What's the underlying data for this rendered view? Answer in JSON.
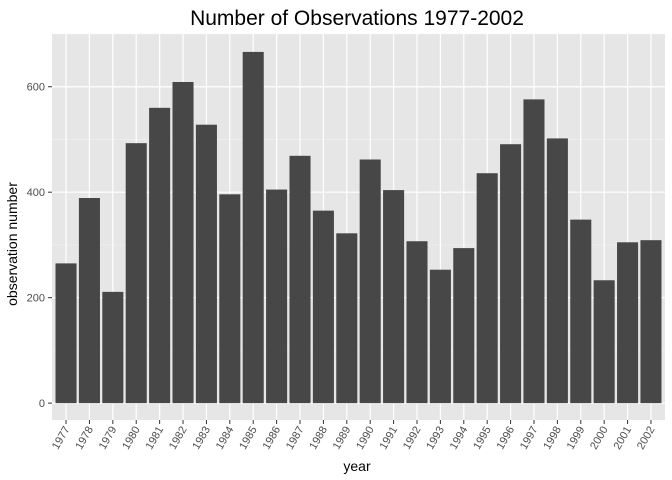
{
  "chart_data": {
    "type": "bar",
    "title": "Number of Observations 1977-2002",
    "xlabel": "year",
    "ylabel": "observation number",
    "categories": [
      "1977",
      "1978",
      "1979",
      "1980",
      "1981",
      "1982",
      "1983",
      "1984",
      "1985",
      "1986",
      "1987",
      "1988",
      "1989",
      "1990",
      "1991",
      "1992",
      "1993",
      "1994",
      "1995",
      "1996",
      "1997",
      "1998",
      "1999",
      "2000",
      "2001",
      "2002"
    ],
    "values": [
      265,
      389,
      211,
      493,
      560,
      609,
      528,
      396,
      666,
      405,
      469,
      365,
      322,
      462,
      404,
      307,
      253,
      294,
      436,
      491,
      576,
      502,
      348,
      233,
      305,
      309
    ],
    "yticks": [
      0,
      200,
      400,
      600
    ],
    "ylim": [
      -32,
      700
    ],
    "grid": true,
    "legend": "none",
    "colors": {
      "bar": "#474747",
      "panel": "#e6e6e6",
      "grid_major": "#ffffff",
      "grid_minor": "#f2f2f2"
    }
  }
}
